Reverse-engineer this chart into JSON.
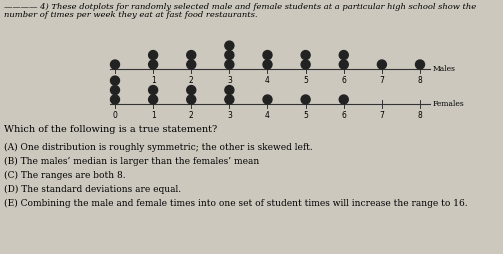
{
  "males": {
    "0": 1,
    "1": 2,
    "2": 2,
    "3": 3,
    "4": 2,
    "5": 2,
    "6": 2,
    "7": 1,
    "8": 1
  },
  "females": {
    "0": 3,
    "1": 2,
    "2": 2,
    "3": 2,
    "4": 1,
    "5": 1,
    "6": 1,
    "7": 0,
    "8": 0
  },
  "label_males": "Males",
  "label_females": "Females",
  "title_line1": "———— 4) These dotplots for randomly selected male and female students at a particular high school show the",
  "title_line2": "number of times per week they eat at fast food restaurants.",
  "question": "Which of the following is a true statement?",
  "choices": [
    "(A) One distribution is roughly symmetric; the other is skewed left.",
    "(B) The males’ median is larger than the females’ mean",
    "(C) The ranges are both 8.",
    "(D) The standard deviations are equal.",
    "(E) Combining the male and female times into one set of student times will increase the range to 16."
  ],
  "bg_color": "#ccc8be",
  "dot_color": "#222222",
  "line_color": "#333333",
  "tick_fontsize": 5.5,
  "label_fontsize": 5.5,
  "title_fontsize": 6.0,
  "text_fontsize": 7.0,
  "choice_fontsize": 6.5
}
